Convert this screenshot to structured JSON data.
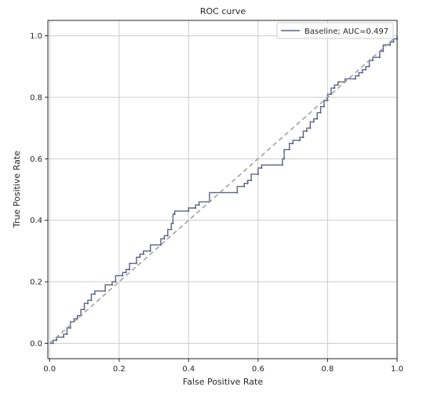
{
  "chart_data": {
    "type": "line",
    "title": "ROC curve",
    "xlabel": "False Positive Rate",
    "ylabel": "True Positive Rate",
    "xlim": [
      -0.005,
      1.0
    ],
    "ylim": [
      -0.05,
      1.05
    ],
    "xticks": [
      0.0,
      0.2,
      0.4,
      0.6,
      0.8,
      1.0
    ],
    "xtick_labels": [
      "0.0",
      "0.2",
      "0.4",
      "0.6",
      "0.8",
      "1.0"
    ],
    "yticks": [
      0.0,
      0.2,
      0.4,
      0.6,
      0.8,
      1.0
    ],
    "ytick_labels": [
      "0.0",
      "0.2",
      "0.4",
      "0.6",
      "0.8",
      "1.0"
    ],
    "grid": true,
    "legend_position": "top-right",
    "series": [
      {
        "name": "Baseline; AUC=0.497",
        "color": "#5a6282",
        "style": "step",
        "points": [
          [
            0.0,
            0.0
          ],
          [
            0.01,
            0.0
          ],
          [
            0.01,
            0.01
          ],
          [
            0.02,
            0.01
          ],
          [
            0.02,
            0.02
          ],
          [
            0.04,
            0.02
          ],
          [
            0.04,
            0.03
          ],
          [
            0.05,
            0.03
          ],
          [
            0.05,
            0.05
          ],
          [
            0.06,
            0.05
          ],
          [
            0.06,
            0.07
          ],
          [
            0.07,
            0.07
          ],
          [
            0.07,
            0.08
          ],
          [
            0.08,
            0.08
          ],
          [
            0.08,
            0.09
          ],
          [
            0.09,
            0.09
          ],
          [
            0.09,
            0.11
          ],
          [
            0.1,
            0.11
          ],
          [
            0.1,
            0.13
          ],
          [
            0.11,
            0.13
          ],
          [
            0.11,
            0.14
          ],
          [
            0.12,
            0.14
          ],
          [
            0.12,
            0.16
          ],
          [
            0.13,
            0.16
          ],
          [
            0.13,
            0.17
          ],
          [
            0.16,
            0.17
          ],
          [
            0.16,
            0.19
          ],
          [
            0.18,
            0.19
          ],
          [
            0.18,
            0.2
          ],
          [
            0.19,
            0.2
          ],
          [
            0.19,
            0.22
          ],
          [
            0.21,
            0.22
          ],
          [
            0.21,
            0.23
          ],
          [
            0.22,
            0.23
          ],
          [
            0.22,
            0.24
          ],
          [
            0.23,
            0.24
          ],
          [
            0.23,
            0.26
          ],
          [
            0.25,
            0.26
          ],
          [
            0.25,
            0.28
          ],
          [
            0.26,
            0.28
          ],
          [
            0.26,
            0.29
          ],
          [
            0.27,
            0.29
          ],
          [
            0.27,
            0.3
          ],
          [
            0.29,
            0.3
          ],
          [
            0.29,
            0.32
          ],
          [
            0.32,
            0.32
          ],
          [
            0.32,
            0.34
          ],
          [
            0.33,
            0.34
          ],
          [
            0.33,
            0.35
          ],
          [
            0.34,
            0.35
          ],
          [
            0.34,
            0.37
          ],
          [
            0.35,
            0.37
          ],
          [
            0.35,
            0.39
          ],
          [
            0.355,
            0.39
          ],
          [
            0.355,
            0.42
          ],
          [
            0.36,
            0.42
          ],
          [
            0.36,
            0.43
          ],
          [
            0.4,
            0.43
          ],
          [
            0.4,
            0.44
          ],
          [
            0.42,
            0.44
          ],
          [
            0.42,
            0.45
          ],
          [
            0.43,
            0.45
          ],
          [
            0.43,
            0.46
          ],
          [
            0.46,
            0.46
          ],
          [
            0.46,
            0.49
          ],
          [
            0.54,
            0.49
          ],
          [
            0.54,
            0.51
          ],
          [
            0.56,
            0.51
          ],
          [
            0.56,
            0.52
          ],
          [
            0.57,
            0.52
          ],
          [
            0.57,
            0.53
          ],
          [
            0.58,
            0.53
          ],
          [
            0.58,
            0.55
          ],
          [
            0.6,
            0.55
          ],
          [
            0.6,
            0.57
          ],
          [
            0.61,
            0.57
          ],
          [
            0.61,
            0.58
          ],
          [
            0.67,
            0.58
          ],
          [
            0.67,
            0.6
          ],
          [
            0.675,
            0.6
          ],
          [
            0.675,
            0.63
          ],
          [
            0.69,
            0.63
          ],
          [
            0.69,
            0.65
          ],
          [
            0.7,
            0.65
          ],
          [
            0.7,
            0.66
          ],
          [
            0.72,
            0.66
          ],
          [
            0.72,
            0.67
          ],
          [
            0.73,
            0.67
          ],
          [
            0.73,
            0.69
          ],
          [
            0.74,
            0.69
          ],
          [
            0.74,
            0.7
          ],
          [
            0.75,
            0.7
          ],
          [
            0.75,
            0.72
          ],
          [
            0.76,
            0.72
          ],
          [
            0.76,
            0.73
          ],
          [
            0.77,
            0.73
          ],
          [
            0.77,
            0.75
          ],
          [
            0.78,
            0.75
          ],
          [
            0.78,
            0.77
          ],
          [
            0.79,
            0.77
          ],
          [
            0.79,
            0.79
          ],
          [
            0.8,
            0.79
          ],
          [
            0.8,
            0.81
          ],
          [
            0.81,
            0.81
          ],
          [
            0.81,
            0.83
          ],
          [
            0.82,
            0.83
          ],
          [
            0.82,
            0.84
          ],
          [
            0.83,
            0.84
          ],
          [
            0.83,
            0.85
          ],
          [
            0.85,
            0.85
          ],
          [
            0.85,
            0.86
          ],
          [
            0.88,
            0.86
          ],
          [
            0.88,
            0.87
          ],
          [
            0.89,
            0.87
          ],
          [
            0.89,
            0.88
          ],
          [
            0.9,
            0.88
          ],
          [
            0.9,
            0.89
          ],
          [
            0.91,
            0.89
          ],
          [
            0.91,
            0.9
          ],
          [
            0.92,
            0.9
          ],
          [
            0.92,
            0.92
          ],
          [
            0.93,
            0.92
          ],
          [
            0.93,
            0.93
          ],
          [
            0.95,
            0.93
          ],
          [
            0.95,
            0.95
          ],
          [
            0.96,
            0.95
          ],
          [
            0.96,
            0.97
          ],
          [
            0.98,
            0.97
          ],
          [
            0.98,
            0.98
          ],
          [
            0.99,
            0.98
          ],
          [
            0.99,
            0.99
          ],
          [
            1.0,
            0.99
          ],
          [
            1.0,
            1.0
          ]
        ]
      },
      {
        "name": "",
        "color": "#a09b9b",
        "style": "dashed",
        "points": [
          [
            0.0,
            0.0
          ],
          [
            1.0,
            1.0
          ]
        ]
      }
    ]
  }
}
